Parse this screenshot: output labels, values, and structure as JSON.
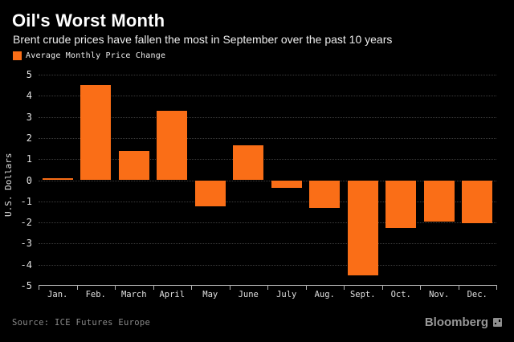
{
  "header": {
    "title": "Oil's Worst Month",
    "subtitle": "Brent crude prices have fallen the most in September over the past 10 years",
    "legend": {
      "label": "Average Monthly Price Change",
      "swatch_color": "#fa6e17"
    }
  },
  "chart_data": {
    "type": "bar",
    "title": "Oil's Worst Month",
    "series_name": "Average Monthly Price Change",
    "categories": [
      "Jan.",
      "Feb.",
      "March",
      "April",
      "May",
      "June",
      "July",
      "Aug.",
      "Sept.",
      "Oct.",
      "Nov.",
      "Dec."
    ],
    "values": [
      0.1,
      4.5,
      1.4,
      3.3,
      -1.25,
      1.65,
      -0.35,
      -1.3,
      -4.5,
      -2.25,
      -1.95,
      -2.05
    ],
    "xlabel": "",
    "ylabel": "U.S. Dollars",
    "ylim": [
      -5,
      5
    ],
    "y_ticks": [
      5,
      4,
      3,
      2,
      1,
      0,
      -1,
      -2,
      -3,
      -4,
      -5
    ],
    "bar_color": "#fa6e17",
    "grid": "horizontal-dotted",
    "legend_position": "top-left"
  },
  "footer": {
    "source": "Source: ICE Futures Europe",
    "brand": "Bloomberg"
  },
  "colors": {
    "background": "#000000",
    "accent": "#fa6e17",
    "gridline": "#3c3c3c",
    "axis": "#b0b0b0",
    "tick_text": "#e0e0e0",
    "title_text": "#ffffff",
    "subtitle_text": "#ededed",
    "muted_text": "#8a8a8a"
  }
}
